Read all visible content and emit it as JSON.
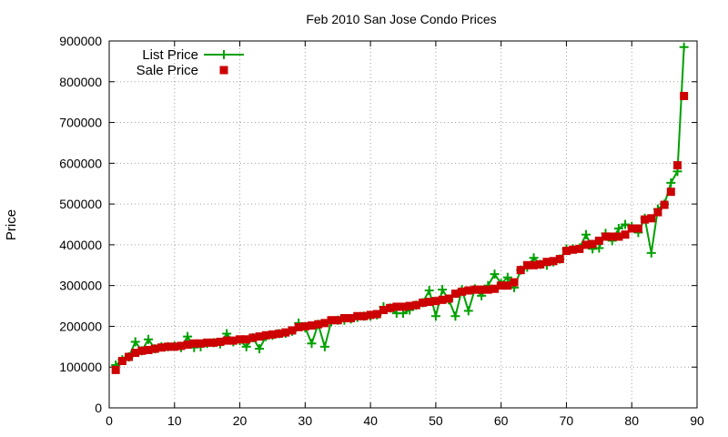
{
  "chart_data": {
    "type": "line",
    "title": "Feb 2010 San Jose Condo Prices",
    "xlabel": "",
    "ylabel": "Price",
    "xlim": [
      0,
      90
    ],
    "ylim": [
      0,
      900000
    ],
    "x_ticks": [
      0,
      10,
      20,
      30,
      40,
      50,
      60,
      70,
      80,
      90
    ],
    "y_ticks": [
      0,
      100000,
      200000,
      300000,
      400000,
      500000,
      600000,
      700000,
      800000,
      900000
    ],
    "grid": true,
    "legend_position": "top-left",
    "series": [
      {
        "name": "List Price",
        "color": "#00a000",
        "style": "linespoints",
        "marker": "plus",
        "values": [
          105000,
          118000,
          125000,
          162000,
          140000,
          168000,
          145000,
          150000,
          150000,
          152000,
          148000,
          175000,
          148000,
          150000,
          158000,
          160000,
          157000,
          182000,
          162000,
          165000,
          150000,
          172000,
          145000,
          175000,
          178000,
          182000,
          183000,
          188000,
          208000,
          197000,
          158000,
          205000,
          150000,
          212000,
          215000,
          215000,
          218000,
          222000,
          225000,
          225000,
          228000,
          248000,
          245000,
          232000,
          232000,
          240000,
          252000,
          258000,
          288000,
          225000,
          290000,
          265000,
          225000,
          290000,
          238000,
          292000,
          275000,
          300000,
          328000,
          305000,
          320000,
          295000,
          338000,
          345000,
          368000,
          352000,
          350000,
          358000,
          365000,
          390000,
          390000,
          392000,
          425000,
          390000,
          392000,
          428000,
          410000,
          440000,
          450000,
          445000,
          430000,
          465000,
          380000,
          488000,
          500000,
          552000,
          580000,
          885000
        ]
      },
      {
        "name": "Sale Price",
        "color": "#cc0000",
        "style": "points",
        "marker": "square",
        "values": [
          93000,
          115000,
          125000,
          135000,
          140000,
          142000,
          145000,
          148000,
          150000,
          150000,
          152000,
          155000,
          158000,
          158000,
          160000,
          160000,
          162000,
          165000,
          165000,
          168000,
          168000,
          172000,
          175000,
          178000,
          180000,
          182000,
          185000,
          190000,
          198000,
          200000,
          202000,
          205000,
          208000,
          215000,
          215000,
          220000,
          220000,
          225000,
          225000,
          228000,
          230000,
          240000,
          245000,
          248000,
          248000,
          250000,
          252000,
          258000,
          260000,
          262000,
          265000,
          268000,
          280000,
          285000,
          288000,
          290000,
          290000,
          290000,
          292000,
          300000,
          300000,
          308000,
          338000,
          350000,
          350000,
          352000,
          358000,
          360000,
          365000,
          385000,
          388000,
          390000,
          400000,
          402000,
          410000,
          420000,
          420000,
          420000,
          425000,
          440000,
          440000,
          462000,
          465000,
          480000,
          498000,
          530000,
          595000,
          765000
        ]
      }
    ]
  }
}
